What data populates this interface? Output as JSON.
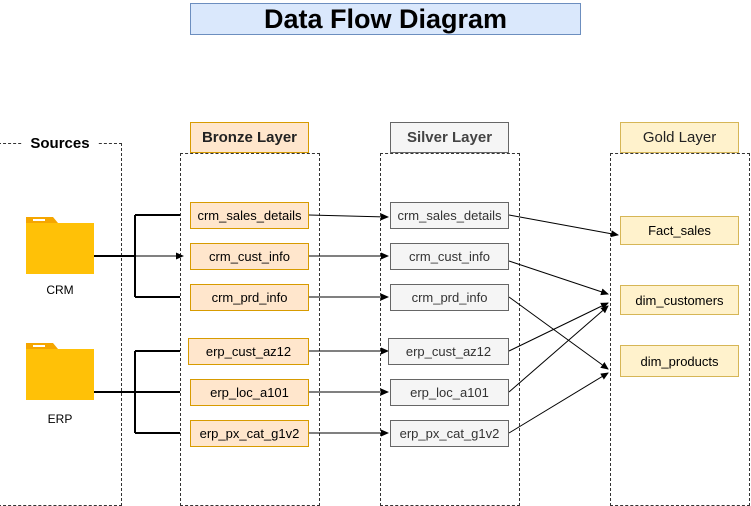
{
  "title": "Data Flow Diagram",
  "colors": {
    "title_fill": "#dae8fc",
    "title_border": "#6c8ebf",
    "bronze_fill": "#ffe6cc",
    "bronze_border": "#d79b00",
    "silver_fill": "#f5f5f5",
    "silver_border": "#666666",
    "gold_fill": "#fff2cc",
    "gold_border": "#d6b656",
    "folder": "#ffc107"
  },
  "sources": {
    "label": "Sources",
    "items": [
      {
        "name": "CRM",
        "icon": "folder-icon"
      },
      {
        "name": "ERP",
        "icon": "folder-icon"
      }
    ]
  },
  "bronze": {
    "label": "Bronze Layer",
    "nodes": [
      "crm_sales_details",
      "crm_cust_info",
      "crm_prd_info",
      "erp_cust_az12",
      "erp_loc_a101",
      "erp_px_cat_g1v2"
    ]
  },
  "silver": {
    "label": "Silver Layer",
    "nodes": [
      "crm_sales_details",
      "crm_cust_info",
      "crm_prd_info",
      "erp_cust_az12",
      "erp_loc_a101",
      "erp_px_cat_g1v2"
    ]
  },
  "gold": {
    "label": "Gold Layer",
    "nodes": [
      "Fact_sales",
      "dim_customers",
      "dim_products"
    ]
  },
  "edges": [
    {
      "from": "CRM",
      "to": "crm_sales_details"
    },
    {
      "from": "CRM",
      "to": "crm_cust_info"
    },
    {
      "from": "CRM",
      "to": "crm_prd_info"
    },
    {
      "from": "ERP",
      "to": "erp_cust_az12"
    },
    {
      "from": "ERP",
      "to": "erp_loc_a101"
    },
    {
      "from": "ERP",
      "to": "erp_px_cat_g1v2"
    },
    {
      "from": "bronze.crm_sales_details",
      "to": "silver.crm_sales_details"
    },
    {
      "from": "bronze.crm_cust_info",
      "to": "silver.crm_cust_info"
    },
    {
      "from": "bronze.crm_prd_info",
      "to": "silver.crm_prd_info"
    },
    {
      "from": "bronze.erp_cust_az12",
      "to": "silver.erp_cust_az12"
    },
    {
      "from": "bronze.erp_loc_a101",
      "to": "silver.erp_loc_a101"
    },
    {
      "from": "bronze.erp_px_cat_g1v2",
      "to": "silver.erp_px_cat_g1v2"
    },
    {
      "from": "silver.crm_sales_details",
      "to": "Fact_sales"
    },
    {
      "from": "silver.crm_cust_info",
      "to": "dim_customers"
    },
    {
      "from": "silver.crm_prd_info",
      "to": "dim_products"
    },
    {
      "from": "silver.erp_cust_az12",
      "to": "dim_customers"
    },
    {
      "from": "silver.erp_loc_a101",
      "to": "dim_customers"
    },
    {
      "from": "silver.erp_px_cat_g1v2",
      "to": "dim_products"
    }
  ]
}
